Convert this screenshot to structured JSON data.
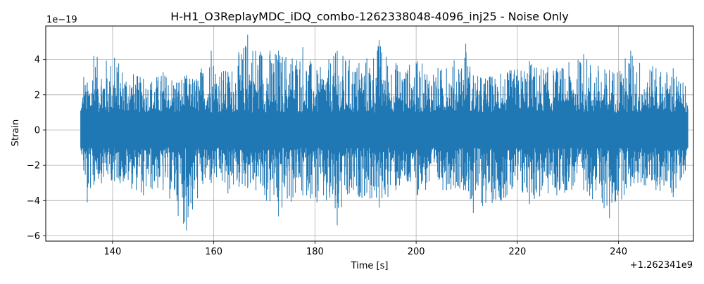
{
  "chart_data": {
    "type": "line",
    "title": "H-H1_O3ReplayMDC_iDQ_combo-1262338048-4096_inj25 - Noise Only",
    "xlabel": "Time [s]",
    "ylabel": "Strain",
    "x_offset_label": "+1.262341e9",
    "y_scale_label": "1e−19",
    "xlim": [
      126.8,
      254.8
    ],
    "ylim": [
      -6.3,
      5.9
    ],
    "x_ticks": [
      140,
      160,
      180,
      200,
      220,
      240
    ],
    "x_tick_labels": [
      "140",
      "160",
      "180",
      "200",
      "220",
      "240"
    ],
    "y_ticks": [
      -6,
      -4,
      -2,
      0,
      2,
      4
    ],
    "y_tick_labels": [
      "−6",
      "−4",
      "−2",
      "0",
      "2",
      "4"
    ],
    "grid": true,
    "series": [
      {
        "color": "#1f77b4",
        "x_range": [
          133.7,
          253.7
        ],
        "envelope": [
          {
            "x": 133.7,
            "ymin": -1.0,
            "ymax": 1.1
          },
          {
            "x": 134.3,
            "ymin": -2.3,
            "ymax": 3.0
          },
          {
            "x": 135.0,
            "ymin": -4.1,
            "ymax": 2.7
          },
          {
            "x": 136.3,
            "ymin": -3.1,
            "ymax": 4.2
          },
          {
            "x": 140.4,
            "ymin": -2.9,
            "ymax": 4.1
          },
          {
            "x": 146.1,
            "ymin": -3.7,
            "ymax": 2.9
          },
          {
            "x": 150.0,
            "ymin": -3.4,
            "ymax": 3.3
          },
          {
            "x": 154.6,
            "ymin": -5.7,
            "ymax": 3.1
          },
          {
            "x": 155.8,
            "ymin": -4.5,
            "ymax": 2.9
          },
          {
            "x": 159.5,
            "ymin": -3.0,
            "ymax": 4.5
          },
          {
            "x": 162.8,
            "ymin": -3.6,
            "ymax": 3.3
          },
          {
            "x": 166.7,
            "ymin": -3.3,
            "ymax": 5.4
          },
          {
            "x": 172.8,
            "ymin": -4.9,
            "ymax": 4.5
          },
          {
            "x": 177.6,
            "ymin": -3.7,
            "ymax": 4.7
          },
          {
            "x": 180.4,
            "ymin": -4.1,
            "ymax": 3.4
          },
          {
            "x": 184.4,
            "ymin": -5.4,
            "ymax": 4.5
          },
          {
            "x": 188.7,
            "ymin": -3.8,
            "ymax": 3.8
          },
          {
            "x": 192.7,
            "ymin": -4.4,
            "ymax": 5.1
          },
          {
            "x": 196.0,
            "ymin": -3.4,
            "ymax": 3.8
          },
          {
            "x": 200.3,
            "ymin": -3.7,
            "ymax": 3.9
          },
          {
            "x": 206.0,
            "ymin": -3.4,
            "ymax": 3.5
          },
          {
            "x": 209.8,
            "ymin": -3.4,
            "ymax": 4.9
          },
          {
            "x": 211.3,
            "ymin": -4.7,
            "ymax": 3.1
          },
          {
            "x": 216.7,
            "ymin": -4.0,
            "ymax": 3.2
          },
          {
            "x": 222.4,
            "ymin": -4.2,
            "ymax": 3.9
          },
          {
            "x": 227.8,
            "ymin": -3.7,
            "ymax": 3.5
          },
          {
            "x": 233.1,
            "ymin": -3.4,
            "ymax": 4.3
          },
          {
            "x": 238.2,
            "ymin": -5.0,
            "ymax": 3.4
          },
          {
            "x": 242.4,
            "ymin": -3.2,
            "ymax": 4.5
          },
          {
            "x": 247.4,
            "ymin": -3.4,
            "ymax": 3.5
          },
          {
            "x": 250.8,
            "ymin": -3.8,
            "ymax": 3.5
          },
          {
            "x": 253.2,
            "ymin": -2.3,
            "ymax": 2.5
          },
          {
            "x": 253.7,
            "ymin": -1.0,
            "ymax": 1.2
          }
        ]
      }
    ]
  }
}
